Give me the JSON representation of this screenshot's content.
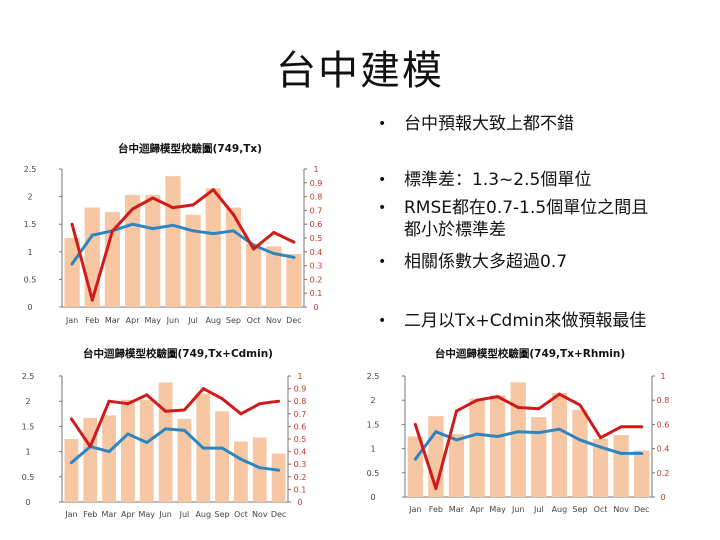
{
  "slide": {
    "title": "台中建模",
    "bullets": [
      "台中預報大致上都不錯",
      "標準差：1.3~2.5個單位",
      "RMSE都在0.7-1.5個單位之間且都小於標準差",
      "相關係數大多超過0.7",
      "二月以Tx+Cdmin來做預報最佳"
    ]
  },
  "colors": {
    "bar": "#F7C7A3",
    "rmse_line": "#2E86C1",
    "corr_line": "#D11A1A",
    "axis": "#777777"
  },
  "chart_data": [
    {
      "type": "bar",
      "title": "台中迴歸模型校驗圖(749,Tx)",
      "categories": [
        "Jan",
        "Feb",
        "Mar",
        "Apr",
        "May",
        "Jun",
        "Jul",
        "Aug",
        "Sep",
        "Oct",
        "Nov",
        "Dec"
      ],
      "ylim": [
        0,
        2.5
      ],
      "yticks": [
        "0",
        "0.5",
        "1",
        "1.5",
        "2",
        "2.5"
      ],
      "y2lim": [
        0,
        1
      ],
      "y2ticks": [
        "0",
        "0.1",
        "0.2",
        "0.3",
        "0.4",
        "0.5",
        "0.6",
        "0.7",
        "0.8",
        "0.9",
        "1"
      ],
      "series": [
        {
          "kind": "bar",
          "axis": "left",
          "values": [
            1.25,
            1.8,
            1.72,
            2.03,
            2.03,
            2.37,
            1.67,
            2.15,
            1.8,
            1.15,
            1.1,
            0.96
          ]
        },
        {
          "kind": "line",
          "axis": "left",
          "color": "blue",
          "values": [
            0.78,
            1.3,
            1.38,
            1.5,
            1.42,
            1.48,
            1.38,
            1.33,
            1.38,
            1.12,
            0.97,
            0.9
          ]
        },
        {
          "kind": "line",
          "axis": "right",
          "color": "red",
          "values": [
            0.6,
            0.05,
            0.55,
            0.71,
            0.79,
            0.72,
            0.74,
            0.85,
            0.67,
            0.42,
            0.54,
            0.47
          ]
        }
      ]
    },
    {
      "type": "bar",
      "title": "台中迴歸模型校驗圖(749,Tx+Cdmin)",
      "categories": [
        "Jan",
        "Feb",
        "Mar",
        "Apr",
        "May",
        "Jun",
        "Jul",
        "Aug",
        "Sep",
        "Oct",
        "Nov",
        "Dec"
      ],
      "ylim": [
        0,
        2.5
      ],
      "yticks": [
        "0",
        "0.5",
        "1",
        "1.5",
        "2",
        "2.5"
      ],
      "y2lim": [
        0,
        1
      ],
      "y2ticks": [
        "0",
        "0.1",
        "0.2",
        "0.3",
        "0.4",
        "0.5",
        "0.6",
        "0.7",
        "0.8",
        "0.9",
        "1"
      ],
      "series": [
        {
          "kind": "bar",
          "axis": "left",
          "values": [
            1.25,
            1.67,
            1.72,
            2.03,
            2.03,
            2.37,
            1.65,
            2.15,
            1.8,
            1.2,
            1.28,
            0.96
          ]
        },
        {
          "kind": "line",
          "axis": "left",
          "color": "blue",
          "values": [
            0.78,
            1.1,
            1.0,
            1.35,
            1.18,
            1.45,
            1.42,
            1.07,
            1.07,
            0.85,
            0.68,
            0.63
          ]
        },
        {
          "kind": "line",
          "axis": "right",
          "color": "red",
          "values": [
            0.66,
            0.44,
            0.8,
            0.78,
            0.85,
            0.72,
            0.73,
            0.9,
            0.82,
            0.7,
            0.78,
            0.8
          ]
        }
      ]
    },
    {
      "type": "bar",
      "title": "台中迴歸模型校驗圖(749,Tx+Rhmin)",
      "categories": [
        "Jan",
        "Feb",
        "Mar",
        "Apr",
        "May",
        "Jun",
        "Jul",
        "Aug",
        "Sep",
        "Oct",
        "Nov",
        "Dec"
      ],
      "ylim": [
        0,
        2.5
      ],
      "yticks": [
        "0",
        "0.5",
        "1",
        "1.5",
        "2",
        "2.5"
      ],
      "y2lim": [
        0,
        1
      ],
      "y2ticks": [
        "0",
        "0.2",
        "0.4",
        "0.6",
        "0.8",
        "1"
      ],
      "series": [
        {
          "kind": "bar",
          "axis": "left",
          "values": [
            1.25,
            1.67,
            1.3,
            2.03,
            2.1,
            2.37,
            1.65,
            2.15,
            1.8,
            1.2,
            1.28,
            0.96
          ]
        },
        {
          "kind": "line",
          "axis": "left",
          "color": "blue",
          "values": [
            0.78,
            1.35,
            1.18,
            1.3,
            1.25,
            1.35,
            1.33,
            1.4,
            1.18,
            1.03,
            0.9,
            0.9
          ]
        },
        {
          "kind": "line",
          "axis": "right",
          "color": "red",
          "values": [
            0.6,
            0.07,
            0.71,
            0.8,
            0.83,
            0.74,
            0.73,
            0.85,
            0.76,
            0.49,
            0.58,
            0.58
          ]
        }
      ]
    }
  ]
}
